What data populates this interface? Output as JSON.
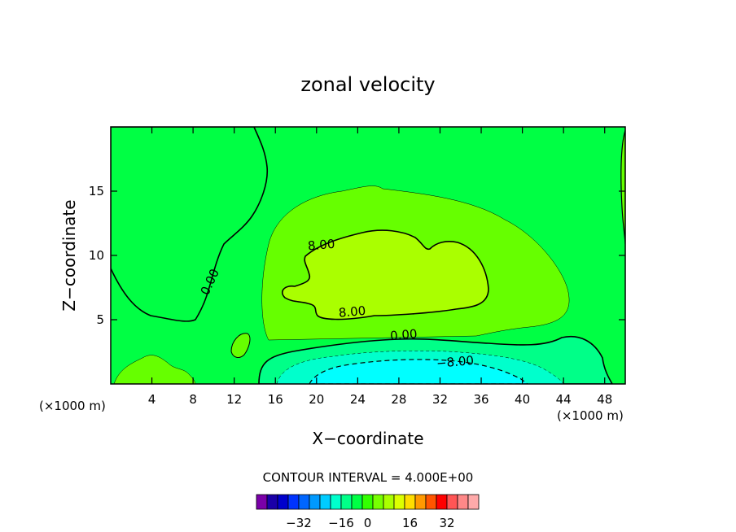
{
  "chart_data": {
    "type": "heatmap",
    "title": "zonal velocity",
    "xlabel": "X−coordinate",
    "ylabel": "Z−coordinate",
    "x_unit_left": "(×1000 m)",
    "x_unit_right": "(×1000 m)",
    "xlim": [
      0,
      50
    ],
    "ylim": [
      0,
      20
    ],
    "x_ticks": [
      4,
      8,
      12,
      16,
      20,
      24,
      28,
      32,
      36,
      40,
      44,
      48
    ],
    "y_ticks": [
      5,
      10,
      15
    ],
    "grid": false,
    "contour_interval_text": "CONTOUR INTERVAL = 4.000E+00",
    "contour_labels": [
      {
        "text": "0.00",
        "x": 10,
        "z": 7.8
      },
      {
        "text": "8.00",
        "x": 20.5,
        "z": 10.5
      },
      {
        "text": "8.00",
        "x": 23.5,
        "z": 5.3
      },
      {
        "text": "0.00",
        "x": 28.5,
        "z": 3.5
      },
      {
        "text": "−8.00",
        "x": 33.5,
        "z": 1.4
      }
    ],
    "colorbar": {
      "colors": [
        "#7a00a8",
        "#1a00a8",
        "#0000cc",
        "#0033ff",
        "#0066ff",
        "#0099ff",
        "#00ccff",
        "#00ffcc",
        "#00ff88",
        "#00ff44",
        "#33ff00",
        "#77ff00",
        "#aaff00",
        "#ddff00",
        "#ffdd00",
        "#ff9900",
        "#ff5500",
        "#ff0000",
        "#ff5555",
        "#ff8888",
        "#ffaaaa"
      ],
      "tick_labels": [
        "−32",
        "−16",
        "0",
        "16",
        "32"
      ]
    },
    "level_colors": {
      "below_-8": "#00ffff",
      "-8_to_-4": "#00ffcc",
      "-4_to_0": "#00ff88",
      "0_to_4": "#00ff44",
      "4_to_8": "#33ff00",
      "8_to_12": "#66ff00",
      "12_to_16": "#aaff00"
    }
  }
}
